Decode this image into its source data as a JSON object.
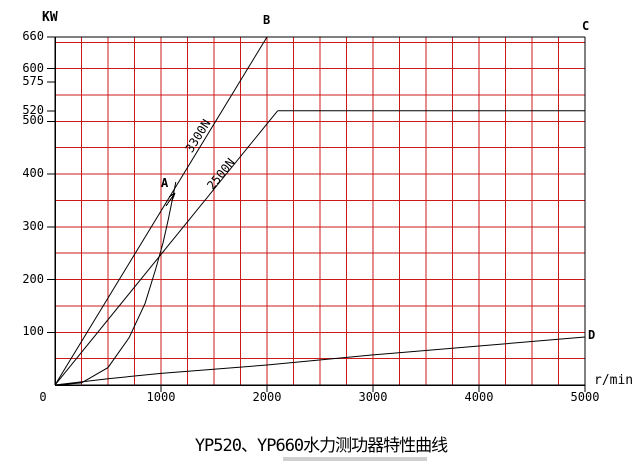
{
  "colors": {
    "grid_red": "#cc1a1a",
    "line_black": "#000000",
    "background": "#ffffff",
    "title_underline": "#cfcfcf"
  },
  "chart_data": {
    "type": "line",
    "title": "YP520、YP660水力测功器特性曲线",
    "xlabel": "r/min",
    "ylabel": "KW",
    "xlim": [
      0,
      5000
    ],
    "ylim": [
      0,
      660
    ],
    "x_ticks": [
      0,
      1000,
      2000,
      3000,
      4000,
      5000
    ],
    "y_ticks": [
      0,
      100,
      200,
      300,
      400,
      500,
      520,
      575,
      600,
      660
    ],
    "x_grid_interval": 250,
    "y_grid_interval": 50,
    "grid": true,
    "legend": false,
    "series": [
      {
        "name": "torque-line-3300N",
        "label": "3300N",
        "points": [
          [
            0,
            0
          ],
          [
            2000,
            660
          ]
        ]
      },
      {
        "name": "max-power-line-660",
        "points": [
          [
            0,
            660
          ],
          [
            5000,
            660
          ]
        ]
      },
      {
        "name": "torque-line-2500N",
        "label": "2500N",
        "points": [
          [
            0,
            0
          ],
          [
            2100,
            520
          ]
        ]
      },
      {
        "name": "power-line-520",
        "points": [
          [
            2100,
            520
          ],
          [
            5000,
            520
          ]
        ]
      },
      {
        "name": "full-water-curve",
        "points": [
          [
            0,
            0
          ],
          [
            250,
            4
          ],
          [
            500,
            33
          ],
          [
            700,
            90
          ],
          [
            850,
            155
          ],
          [
            950,
            220
          ],
          [
            1020,
            270
          ],
          [
            1070,
            315
          ],
          [
            1110,
            355
          ],
          [
            1140,
            385
          ]
        ]
      },
      {
        "name": "no-load-curve",
        "points": [
          [
            0,
            0
          ],
          [
            500,
            12
          ],
          [
            1000,
            22
          ],
          [
            2000,
            38
          ],
          [
            3000,
            57
          ],
          [
            4000,
            74
          ],
          [
            5000,
            91
          ]
        ]
      }
    ],
    "point_labels": [
      {
        "label": "A",
        "x": 1100,
        "y": 380
      },
      {
        "label": "B",
        "x": 2000,
        "y": 660
      },
      {
        "label": "C",
        "x": 5000,
        "y": 660
      },
      {
        "label": "D",
        "x": 5000,
        "y": 91
      }
    ]
  }
}
